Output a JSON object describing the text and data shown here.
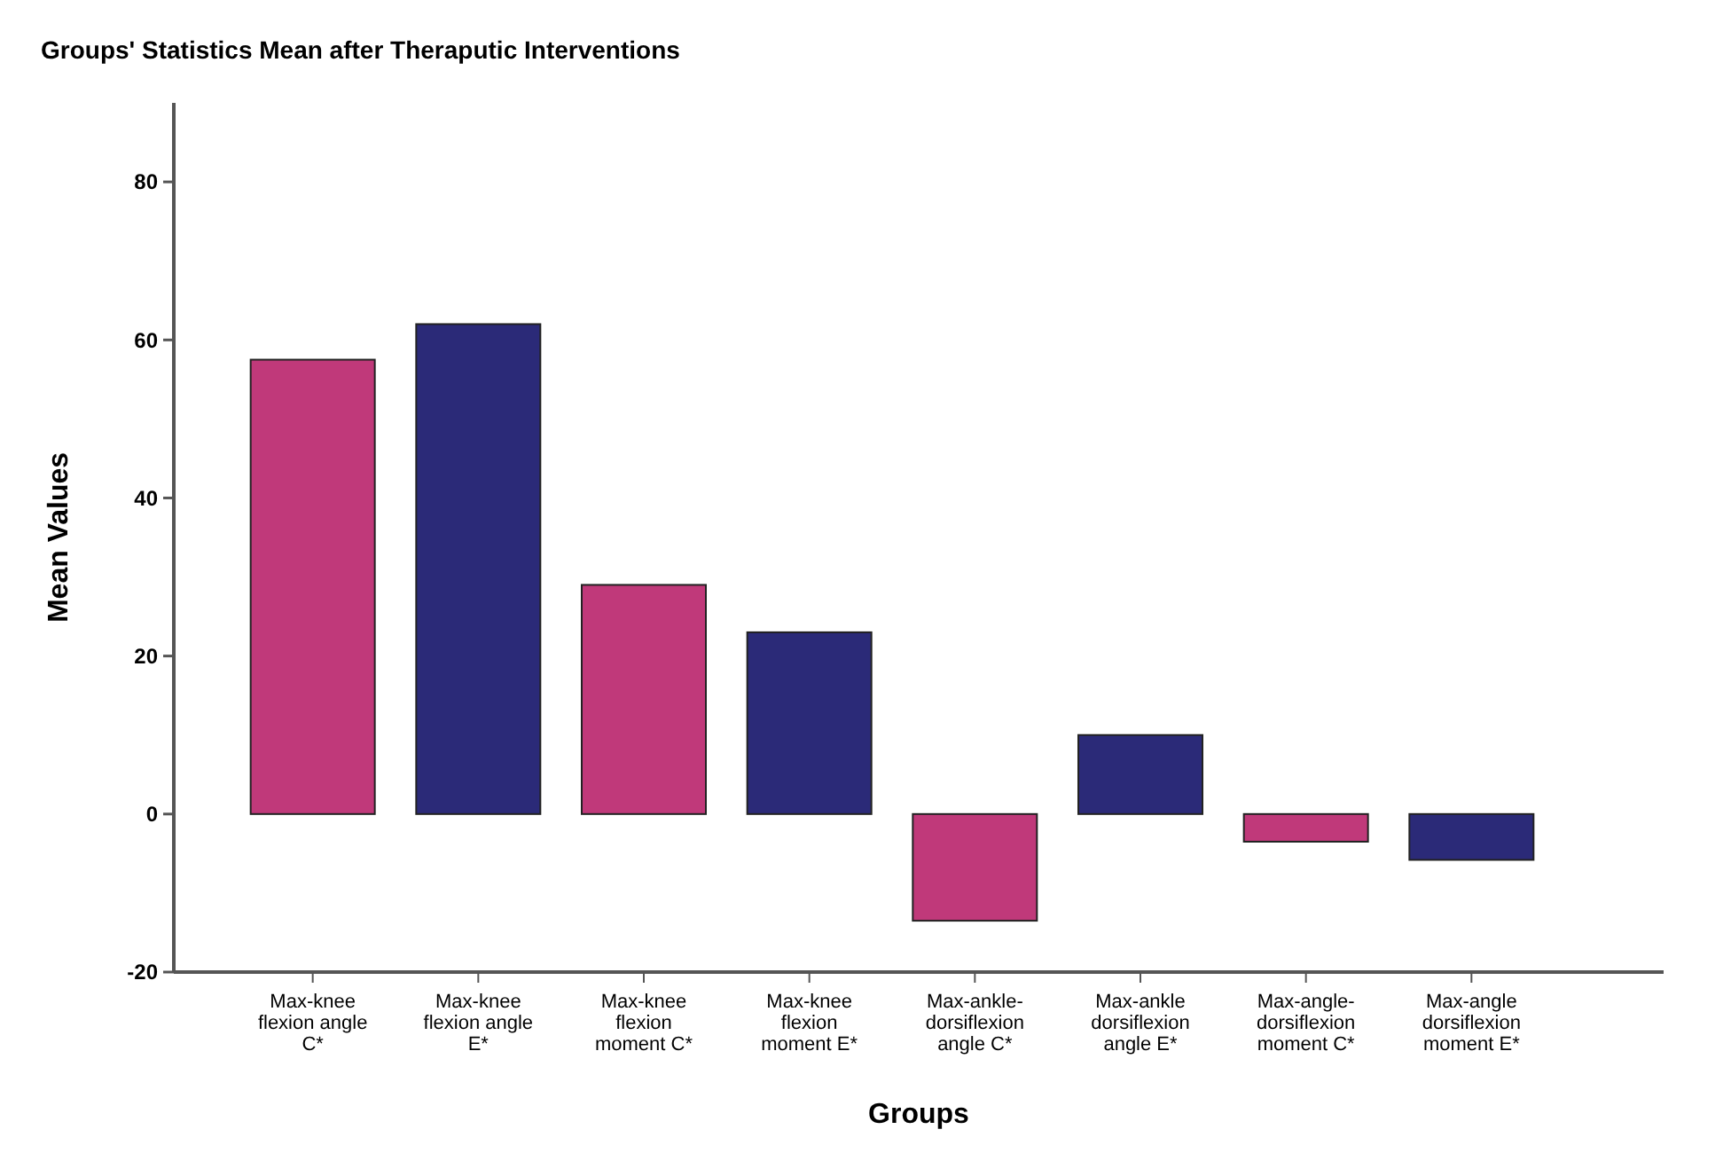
{
  "chart_data": {
    "type": "bar",
    "title": "Groups' Statistics Mean after Theraputic Interventions",
    "xlabel": "Groups",
    "ylabel": "Mean Values",
    "categories": [
      "Max-knee flexion angle C*",
      "Max-knee flexion angle E*",
      "Max-knee flexion moment C*",
      "Max-knee flexion moment E*",
      "Max-ankle-dorsiflexion angle C*",
      "Max-ankle dorsiflexion angle E*",
      "Max-angle-dorsiflexion moment C*",
      "Max-angle dorsiflexion moment E*"
    ],
    "values": [
      57.5,
      62,
      29,
      23,
      -13.5,
      10,
      -3.5,
      -5.8
    ],
    "colors": [
      "#c0397a",
      "#2b2a78",
      "#c0397a",
      "#2b2a78",
      "#c0397a",
      "#2b2a78",
      "#c0397a",
      "#2b2a78"
    ],
    "ylim": [
      -20,
      90
    ],
    "yticks": [
      -20,
      0,
      20,
      40,
      60,
      80
    ],
    "grid": false
  }
}
